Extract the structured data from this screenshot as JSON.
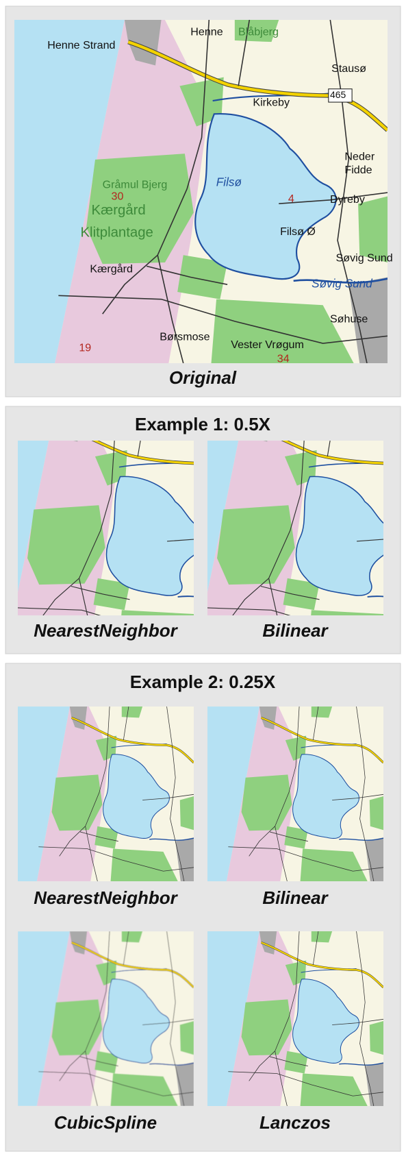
{
  "original": {
    "caption": "Original",
    "labels": [
      "Henne Strand",
      "Henne",
      "Blåbjerg",
      "Stausø",
      "Kirkeby",
      "465",
      "Filsø",
      "4",
      "Neder",
      "Fidde",
      "Dyreby",
      "Gråmul Bjerg",
      "30",
      "Kærgård",
      "Klitplantage",
      "Filsø Ø",
      "Søvig Sund",
      "Kærgård",
      "Søvig Sund",
      "Søhuse",
      "Børsmose",
      "Vester Vrøgum",
      "19",
      "34"
    ]
  },
  "examples": [
    {
      "title": "Example 1: 0.5X",
      "panels": [
        {
          "caption": "NearestNeighbor"
        },
        {
          "caption": "Bilinear"
        }
      ]
    },
    {
      "title": "Example 2: 0.25X",
      "panels": [
        {
          "caption": "NearestNeighbor"
        },
        {
          "caption": "Bilinear"
        },
        {
          "caption": "CubicSpline"
        },
        {
          "caption": "Lanczos"
        }
      ]
    }
  ]
}
